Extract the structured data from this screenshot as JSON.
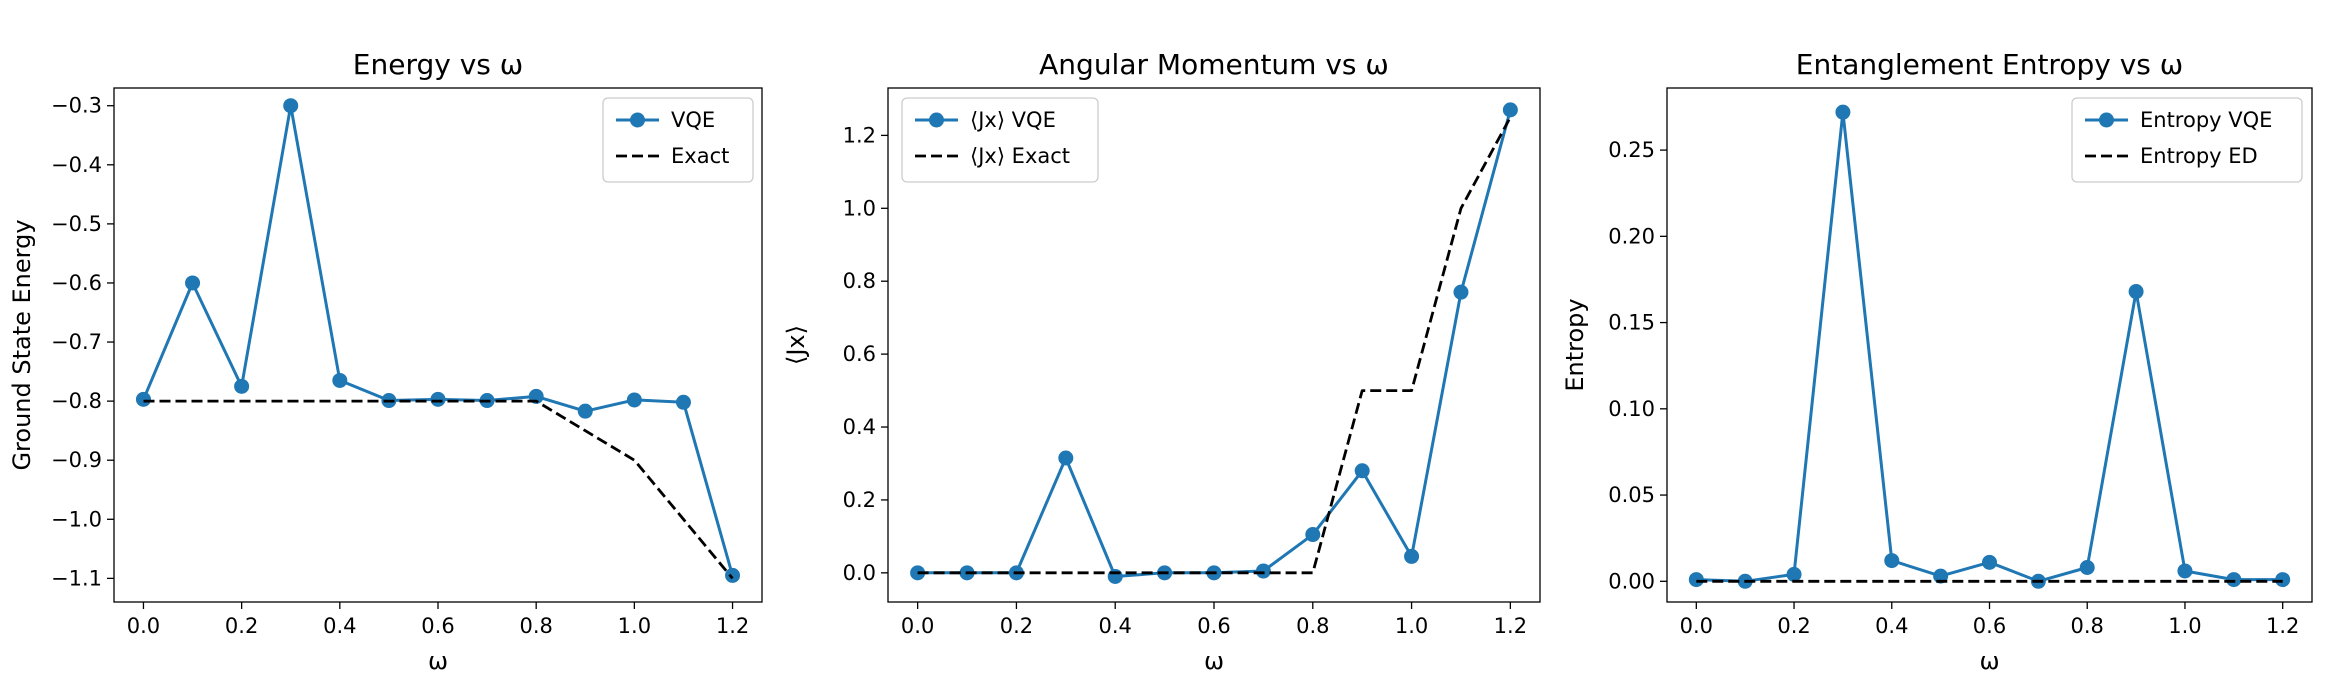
{
  "chart_data": [
    {
      "type": "line",
      "title": "Energy vs ω",
      "xlabel": "ω",
      "ylabel": "Ground State Energy",
      "xlim": [
        -0.06,
        1.26
      ],
      "ylim": [
        -1.14,
        -0.27
      ],
      "xticks": [
        0.0,
        0.2,
        0.4,
        0.6,
        0.8,
        1.0,
        1.2
      ],
      "yticks": [
        -0.3,
        -0.4,
        -0.5,
        -0.6,
        -0.7,
        -0.8,
        -0.9,
        -1.0,
        -1.1
      ],
      "xtick_labels": [
        "0.0",
        "0.2",
        "0.4",
        "0.6",
        "0.8",
        "1.0",
        "1.2"
      ],
      "ytick_labels": [
        "−0.3",
        "−0.4",
        "−0.5",
        "−0.6",
        "−0.7",
        "−0.8",
        "−0.9",
        "−1.0",
        "−1.1"
      ],
      "grid": false,
      "legend_position": "top-right",
      "x": [
        0.0,
        0.1,
        0.2,
        0.3,
        0.4,
        0.5,
        0.6,
        0.7,
        0.8,
        0.9,
        1.0,
        1.1,
        1.2
      ],
      "series": [
        {
          "name": "VQE",
          "style": "solid-marker",
          "color": "#1f77b4",
          "values": [
            -0.797,
            -0.6,
            -0.775,
            -0.3,
            -0.765,
            -0.799,
            -0.797,
            -0.799,
            -0.792,
            -0.817,
            -0.798,
            -0.802,
            -1.095
          ]
        },
        {
          "name": "Exact",
          "style": "dashed",
          "color": "#000000",
          "values": [
            -0.8,
            -0.8,
            -0.8,
            -0.8,
            -0.8,
            -0.8,
            -0.8,
            -0.8,
            -0.8,
            -0.85,
            -0.9,
            -1.0,
            -1.1
          ]
        }
      ]
    },
    {
      "type": "line",
      "title": "Angular Momentum vs ω",
      "xlabel": "ω",
      "ylabel": "⟨Jx⟩",
      "xlim": [
        -0.06,
        1.26
      ],
      "ylim": [
        -0.08,
        1.33
      ],
      "xticks": [
        0.0,
        0.2,
        0.4,
        0.6,
        0.8,
        1.0,
        1.2
      ],
      "yticks": [
        0.0,
        0.2,
        0.4,
        0.6,
        0.8,
        1.0,
        1.2
      ],
      "xtick_labels": [
        "0.0",
        "0.2",
        "0.4",
        "0.6",
        "0.8",
        "1.0",
        "1.2"
      ],
      "ytick_labels": [
        "0.0",
        "0.2",
        "0.4",
        "0.6",
        "0.8",
        "1.0",
        "1.2"
      ],
      "grid": false,
      "legend_position": "top-left",
      "x": [
        0.0,
        0.1,
        0.2,
        0.3,
        0.4,
        0.5,
        0.6,
        0.7,
        0.8,
        0.9,
        1.0,
        1.1,
        1.2
      ],
      "series": [
        {
          "name": "⟨Jx⟩ VQE",
          "style": "solid-marker",
          "color": "#1f77b4",
          "values": [
            0.0,
            0.0,
            0.0,
            0.315,
            -0.01,
            0.0,
            0.0,
            0.005,
            0.105,
            0.28,
            0.045,
            0.77,
            1.27
          ]
        },
        {
          "name": "⟨Jx⟩ Exact",
          "style": "dashed",
          "color": "#000000",
          "values": [
            0.0,
            0.0,
            0.0,
            0.0,
            0.0,
            0.0,
            0.0,
            0.0,
            0.0,
            0.5,
            0.5,
            1.0,
            1.25
          ]
        }
      ]
    },
    {
      "type": "line",
      "title": "Entanglement Entropy vs ω",
      "xlabel": "ω",
      "ylabel": "Entropy",
      "xlim": [
        -0.06,
        1.26
      ],
      "ylim": [
        -0.012,
        0.286
      ],
      "xticks": [
        0.0,
        0.2,
        0.4,
        0.6,
        0.8,
        1.0,
        1.2
      ],
      "yticks": [
        0.0,
        0.05,
        0.1,
        0.15,
        0.2,
        0.25
      ],
      "xtick_labels": [
        "0.0",
        "0.2",
        "0.4",
        "0.6",
        "0.8",
        "1.0",
        "1.2"
      ],
      "ytick_labels": [
        "0.00",
        "0.05",
        "0.10",
        "0.15",
        "0.20",
        "0.25"
      ],
      "grid": false,
      "legend_position": "top-right",
      "x": [
        0.0,
        0.1,
        0.2,
        0.3,
        0.4,
        0.5,
        0.6,
        0.7,
        0.8,
        0.9,
        1.0,
        1.1,
        1.2
      ],
      "series": [
        {
          "name": "Entropy VQE",
          "style": "solid-marker",
          "color": "#1f77b4",
          "values": [
            0.001,
            0.0,
            0.004,
            0.272,
            0.012,
            0.003,
            0.011,
            0.0,
            0.008,
            0.168,
            0.006,
            0.001,
            0.001
          ]
        },
        {
          "name": "Entropy ED",
          "style": "dashed",
          "color": "#000000",
          "values": [
            0.0,
            0.0,
            0.0,
            0.0,
            0.0,
            0.0,
            0.0,
            0.0,
            0.0,
            0.0,
            0.0,
            0.0,
            0.0
          ]
        }
      ]
    }
  ]
}
